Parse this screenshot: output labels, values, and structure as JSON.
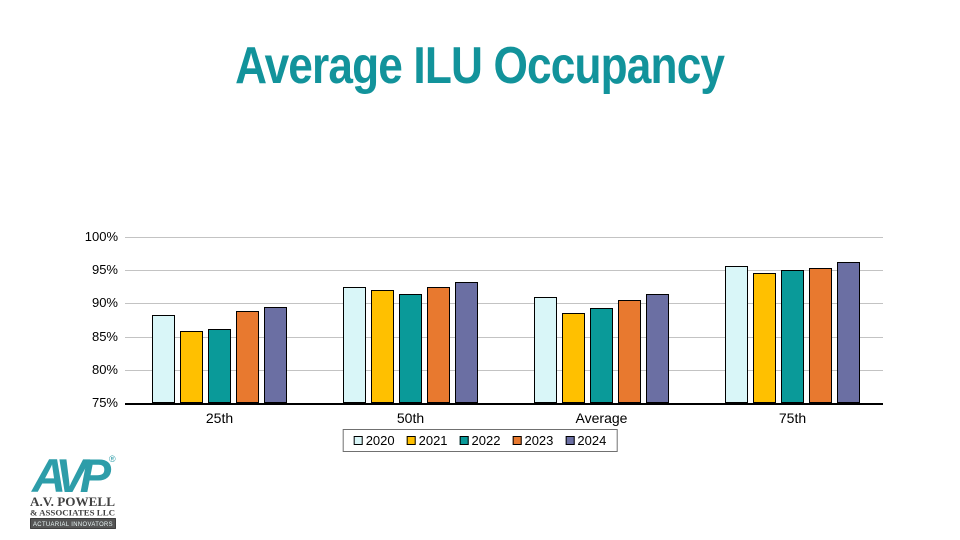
{
  "slide": {
    "title": "Average ILU Occupancy",
    "title_color": "#12939B",
    "background": "#FFFFFF"
  },
  "chart_data": {
    "type": "bar",
    "title": "Average ILU Occupancy",
    "categories": [
      "25th",
      "50th",
      "Average",
      "75th"
    ],
    "series": [
      {
        "name": "2020",
        "color": "#D9F6F8",
        "values": [
          88.3,
          92.4,
          91.0,
          95.6
        ]
      },
      {
        "name": "2021",
        "color": "#FFC000",
        "values": [
          85.9,
          92.0,
          88.6,
          94.6
        ]
      },
      {
        "name": "2022",
        "color": "#0A9A99",
        "values": [
          86.2,
          91.4,
          89.3,
          95.0
        ]
      },
      {
        "name": "2023",
        "color": "#E8792F",
        "values": [
          88.8,
          92.4,
          90.5,
          95.3
        ]
      },
      {
        "name": "2024",
        "color": "#6B6FA3",
        "values": [
          89.4,
          93.3,
          91.4,
          96.2
        ]
      }
    ],
    "ylim": [
      75,
      100
    ],
    "ytick_step": 5,
    "ytick_labels": [
      "100%",
      "95%",
      "90%",
      "85%",
      "80%",
      "75%"
    ],
    "xlabel": "",
    "ylabel": "",
    "grid": true,
    "legend_position": "bottom",
    "gridline_color": "#C3C3C3",
    "bar_border_color": "#000000"
  },
  "logo": {
    "monogram": "AVP",
    "registered_mark": "®",
    "line1": "A.V. POWELL",
    "line2": "& ASSOCIATES LLC",
    "badge": "ACTUARIAL INNOVATORS",
    "teal": "#2D9DA9",
    "dark_text": "#414141",
    "badge_bg": "#555555"
  }
}
